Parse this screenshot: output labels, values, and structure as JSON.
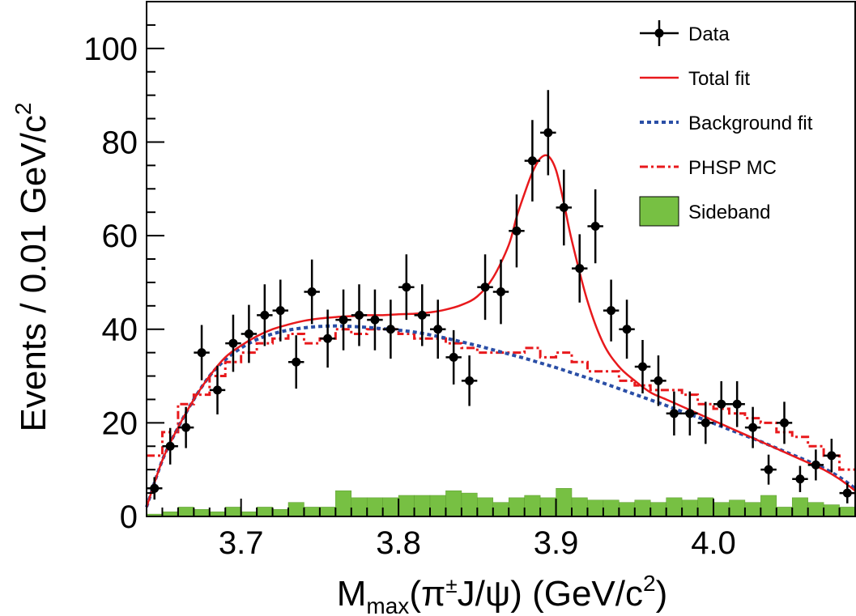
{
  "chart_data": {
    "type": "histogram-fit",
    "xlabel": {
      "prefix": "M",
      "sub": "max",
      "mid1": "(π",
      "sup": "±",
      "mid2": "J/ψ) (GeV/c",
      "sup2": "2",
      "end": ")"
    },
    "ylabel": {
      "main": "Events / 0.01 GeV/c",
      "sup": "2"
    },
    "xlim": [
      3.64,
      4.09
    ],
    "ylim": [
      0,
      110
    ],
    "x_ticks": [
      3.7,
      3.8,
      3.9,
      4.0
    ],
    "x_tick_labels": [
      "3.7",
      "3.8",
      "3.9",
      "4.0"
    ],
    "y_ticks": [
      0,
      20,
      40,
      60,
      80,
      100
    ],
    "y_tick_labels": [
      "0",
      "20",
      "40",
      "60",
      "80",
      "100"
    ],
    "bin_width": 0.01,
    "legend": {
      "position": "top-right",
      "entries": [
        {
          "label": "Data",
          "style": "marker-errorbar",
          "color": "#000000"
        },
        {
          "label": "Total fit",
          "style": "solid",
          "color": "#e8191c"
        },
        {
          "label": "Background fit",
          "style": "dotted",
          "color": "#2a4ea6"
        },
        {
          "label": "PHSP MC",
          "style": "dash-dot",
          "color": "#e8191c"
        },
        {
          "label": "Sideband",
          "style": "filled",
          "color": "#77c043"
        }
      ]
    },
    "data_points": {
      "x": [
        3.645,
        3.655,
        3.665,
        3.675,
        3.685,
        3.695,
        3.705,
        3.715,
        3.725,
        3.735,
        3.745,
        3.755,
        3.765,
        3.775,
        3.785,
        3.795,
        3.805,
        3.815,
        3.825,
        3.835,
        3.845,
        3.855,
        3.865,
        3.875,
        3.885,
        3.895,
        3.905,
        3.915,
        3.925,
        3.935,
        3.945,
        3.955,
        3.965,
        3.975,
        3.985,
        3.995,
        4.005,
        4.015,
        4.025,
        4.035,
        4.045,
        4.055,
        4.065,
        4.075,
        4.085
      ],
      "y": [
        6,
        15,
        19,
        35,
        27,
        37,
        39,
        43,
        44,
        33,
        48,
        38,
        42,
        43,
        42,
        40,
        49,
        43,
        40,
        34,
        29,
        49,
        48,
        61,
        76,
        82,
        66,
        53,
        62,
        44,
        40,
        32,
        29,
        22,
        22,
        20,
        24,
        24,
        19,
        10,
        20,
        8,
        11,
        13,
        5
      ],
      "err_y": [
        2.4,
        3.9,
        4.4,
        5.9,
        5.2,
        6.1,
        6.2,
        6.6,
        6.6,
        5.7,
        6.9,
        6.2,
        6.5,
        6.6,
        6.5,
        6.3,
        7.0,
        6.6,
        6.3,
        5.8,
        5.4,
        7.0,
        6.9,
        7.8,
        8.7,
        9.1,
        8.1,
        7.3,
        7.9,
        6.6,
        6.3,
        5.7,
        5.4,
        4.7,
        4.7,
        4.5,
        4.9,
        4.9,
        4.4,
        3.2,
        4.5,
        2.8,
        3.3,
        3.6,
        2.2
      ]
    },
    "total_fit": {
      "x": [
        3.64,
        3.65,
        3.66,
        3.67,
        3.68,
        3.69,
        3.7,
        3.71,
        3.72,
        3.73,
        3.74,
        3.75,
        3.76,
        3.77,
        3.78,
        3.79,
        3.8,
        3.81,
        3.82,
        3.83,
        3.84,
        3.85,
        3.86,
        3.87,
        3.875,
        3.88,
        3.885,
        3.89,
        3.895,
        3.9,
        3.905,
        3.91,
        3.92,
        3.93,
        3.94,
        3.95,
        3.96,
        3.97,
        3.98,
        3.99,
        4.0,
        4.01,
        4.02,
        4.03,
        4.04,
        4.05,
        4.06,
        4.07,
        4.08,
        4.09
      ],
      "y": [
        2,
        12,
        19,
        25,
        30,
        34,
        36.5,
        38.5,
        40,
        41,
        41.8,
        42.3,
        42.6,
        42.8,
        43,
        43,
        43.2,
        43.3,
        43.6,
        44.2,
        45.2,
        47,
        51,
        58,
        64,
        69,
        73.5,
        76.5,
        77,
        74,
        67,
        59,
        46,
        37,
        32,
        29,
        26.5,
        25,
        23.5,
        22,
        20.5,
        19,
        17.5,
        16,
        14.5,
        13,
        11.5,
        10,
        8,
        5.5
      ]
    },
    "background_fit": {
      "x": [
        3.64,
        3.65,
        3.66,
        3.67,
        3.68,
        3.69,
        3.7,
        3.71,
        3.72,
        3.73,
        3.74,
        3.75,
        3.76,
        3.77,
        3.78,
        3.79,
        3.8,
        3.81,
        3.82,
        3.83,
        3.84,
        3.85,
        3.86,
        3.87,
        3.88,
        3.89,
        3.9,
        3.91,
        3.92,
        3.93,
        3.94,
        3.95,
        3.96,
        3.97,
        3.98,
        3.99,
        4.0,
        4.01,
        4.02,
        4.03,
        4.04,
        4.05,
        4.06,
        4.07,
        4.08,
        4.09
      ],
      "y": [
        2,
        12,
        19,
        25,
        30,
        33.5,
        36,
        37.8,
        39,
        39.8,
        40.3,
        40.6,
        40.7,
        40.6,
        40.4,
        40.1,
        39.8,
        39.4,
        38.8,
        38.1,
        37.3,
        36.5,
        35.6,
        34.7,
        33.8,
        32.8,
        31.8,
        30.7,
        29.6,
        28.5,
        27.3,
        26.1,
        24.9,
        23.7,
        22.4,
        21.2,
        19.9,
        18.6,
        17.3,
        16,
        14.6,
        13.2,
        11.8,
        10.3,
        8.4,
        6
      ]
    },
    "phsp_mc": {
      "bin_edges": [
        3.64,
        3.65,
        3.66,
        3.67,
        3.68,
        3.69,
        3.7,
        3.71,
        3.72,
        3.73,
        3.74,
        3.75,
        3.76,
        3.77,
        3.78,
        3.79,
        3.8,
        3.81,
        3.82,
        3.83,
        3.84,
        3.85,
        3.86,
        3.87,
        3.88,
        3.89,
        3.9,
        3.91,
        3.92,
        3.93,
        3.94,
        3.95,
        3.96,
        3.97,
        3.98,
        3.99,
        4.0,
        4.01,
        4.02,
        4.03,
        4.04,
        4.05,
        4.06,
        4.07,
        4.08,
        4.09
      ],
      "values": [
        13,
        18,
        24,
        26,
        30,
        33,
        35,
        37,
        38,
        39,
        37,
        38,
        40,
        39,
        40,
        40,
        39,
        38,
        38,
        37,
        36,
        35,
        35,
        35,
        36,
        34,
        35,
        33,
        31,
        31,
        29,
        28,
        27,
        27,
        26,
        24,
        23,
        22,
        21,
        20,
        18,
        17,
        15,
        13,
        10
      ]
    },
    "sideband": {
      "bin_edges": [
        3.64,
        3.65,
        3.66,
        3.67,
        3.68,
        3.69,
        3.7,
        3.71,
        3.72,
        3.73,
        3.74,
        3.75,
        3.76,
        3.77,
        3.78,
        3.79,
        3.8,
        3.81,
        3.82,
        3.83,
        3.84,
        3.85,
        3.86,
        3.87,
        3.88,
        3.89,
        3.9,
        3.91,
        3.92,
        3.93,
        3.94,
        3.95,
        3.96,
        3.97,
        3.98,
        3.99,
        4.0,
        4.01,
        4.02,
        4.03,
        4.04,
        4.05,
        4.06,
        4.07,
        4.08,
        4.09
      ],
      "values": [
        0.5,
        1,
        2,
        1.5,
        1,
        2,
        1,
        2,
        1.5,
        3,
        2,
        2,
        5.5,
        4,
        4,
        4,
        4.5,
        4.5,
        4.5,
        5.5,
        5,
        4,
        3,
        4,
        4.5,
        4,
        6,
        4,
        3.5,
        3.5,
        3,
        3.5,
        3,
        4,
        3.5,
        4,
        3,
        3.5,
        3,
        4.5,
        2,
        4,
        3,
        2.5,
        2
      ]
    }
  }
}
